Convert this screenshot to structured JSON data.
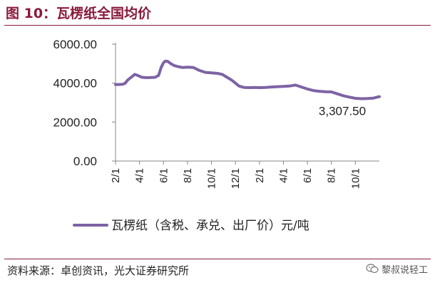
{
  "header": {
    "title": "图 10：瓦楞纸全国均价"
  },
  "footer": {
    "source": "资料来源：卓创资讯，光大证券研究所",
    "watermark_text": "黎叔说轻工",
    "watermark_icon": "wechat-icon"
  },
  "colors": {
    "accent": "#8a1a3b",
    "series": "#7d63a4"
  },
  "chart_data": {
    "type": "line",
    "title": "",
    "xlabel": "",
    "ylabel": "",
    "ylim": [
      0,
      6000
    ],
    "yticks": [
      "0.00",
      "2000.00",
      "4000.00",
      "6000.00"
    ],
    "ytick_values": [
      0,
      2000,
      4000,
      6000
    ],
    "grid": false,
    "legend": "bottom",
    "x_ticks": [
      "2/1",
      "4/1",
      "6/1",
      "8/1",
      "10/1",
      "12/1",
      "2/1",
      "4/1",
      "6/1",
      "8/1",
      "10/1"
    ],
    "data_label": "3,307.50",
    "series": [
      {
        "name": "瓦楞纸（含税、承兑、出厂价）元/吨",
        "x": [
          0,
          0.3,
          0.6,
          0.8,
          1.0,
          1.3,
          1.6,
          1.9,
          2.2,
          2.6,
          3.0,
          3.3,
          3.6,
          3.8,
          4.0,
          4.15,
          4.35,
          4.6,
          4.9,
          5.2,
          5.6,
          6.0,
          6.5,
          7.0,
          7.5,
          8.0,
          8.5,
          8.9,
          9.3,
          9.7,
          10.0,
          10.3,
          10.7,
          11.2,
          11.6,
          12.0,
          12.5,
          13.0,
          13.5,
          14.0,
          14.5,
          15.0,
          15.5,
          16.0,
          16.5,
          17.0,
          17.5,
          18.0,
          18.5,
          19.0,
          19.5,
          20.0,
          20.5,
          21.0,
          21.5,
          22.0
        ],
        "values": [
          3930,
          3930,
          3940,
          3990,
          4150,
          4300,
          4450,
          4380,
          4300,
          4280,
          4290,
          4300,
          4400,
          4800,
          5050,
          5130,
          5120,
          5000,
          4900,
          4850,
          4800,
          4820,
          4800,
          4650,
          4550,
          4530,
          4500,
          4450,
          4300,
          4150,
          4000,
          3850,
          3780,
          3770,
          3780,
          3770,
          3780,
          3800,
          3820,
          3830,
          3850,
          3900,
          3800,
          3700,
          3620,
          3580,
          3560,
          3550,
          3450,
          3350,
          3280,
          3220,
          3200,
          3210,
          3230,
          3307.5
        ]
      }
    ]
  }
}
